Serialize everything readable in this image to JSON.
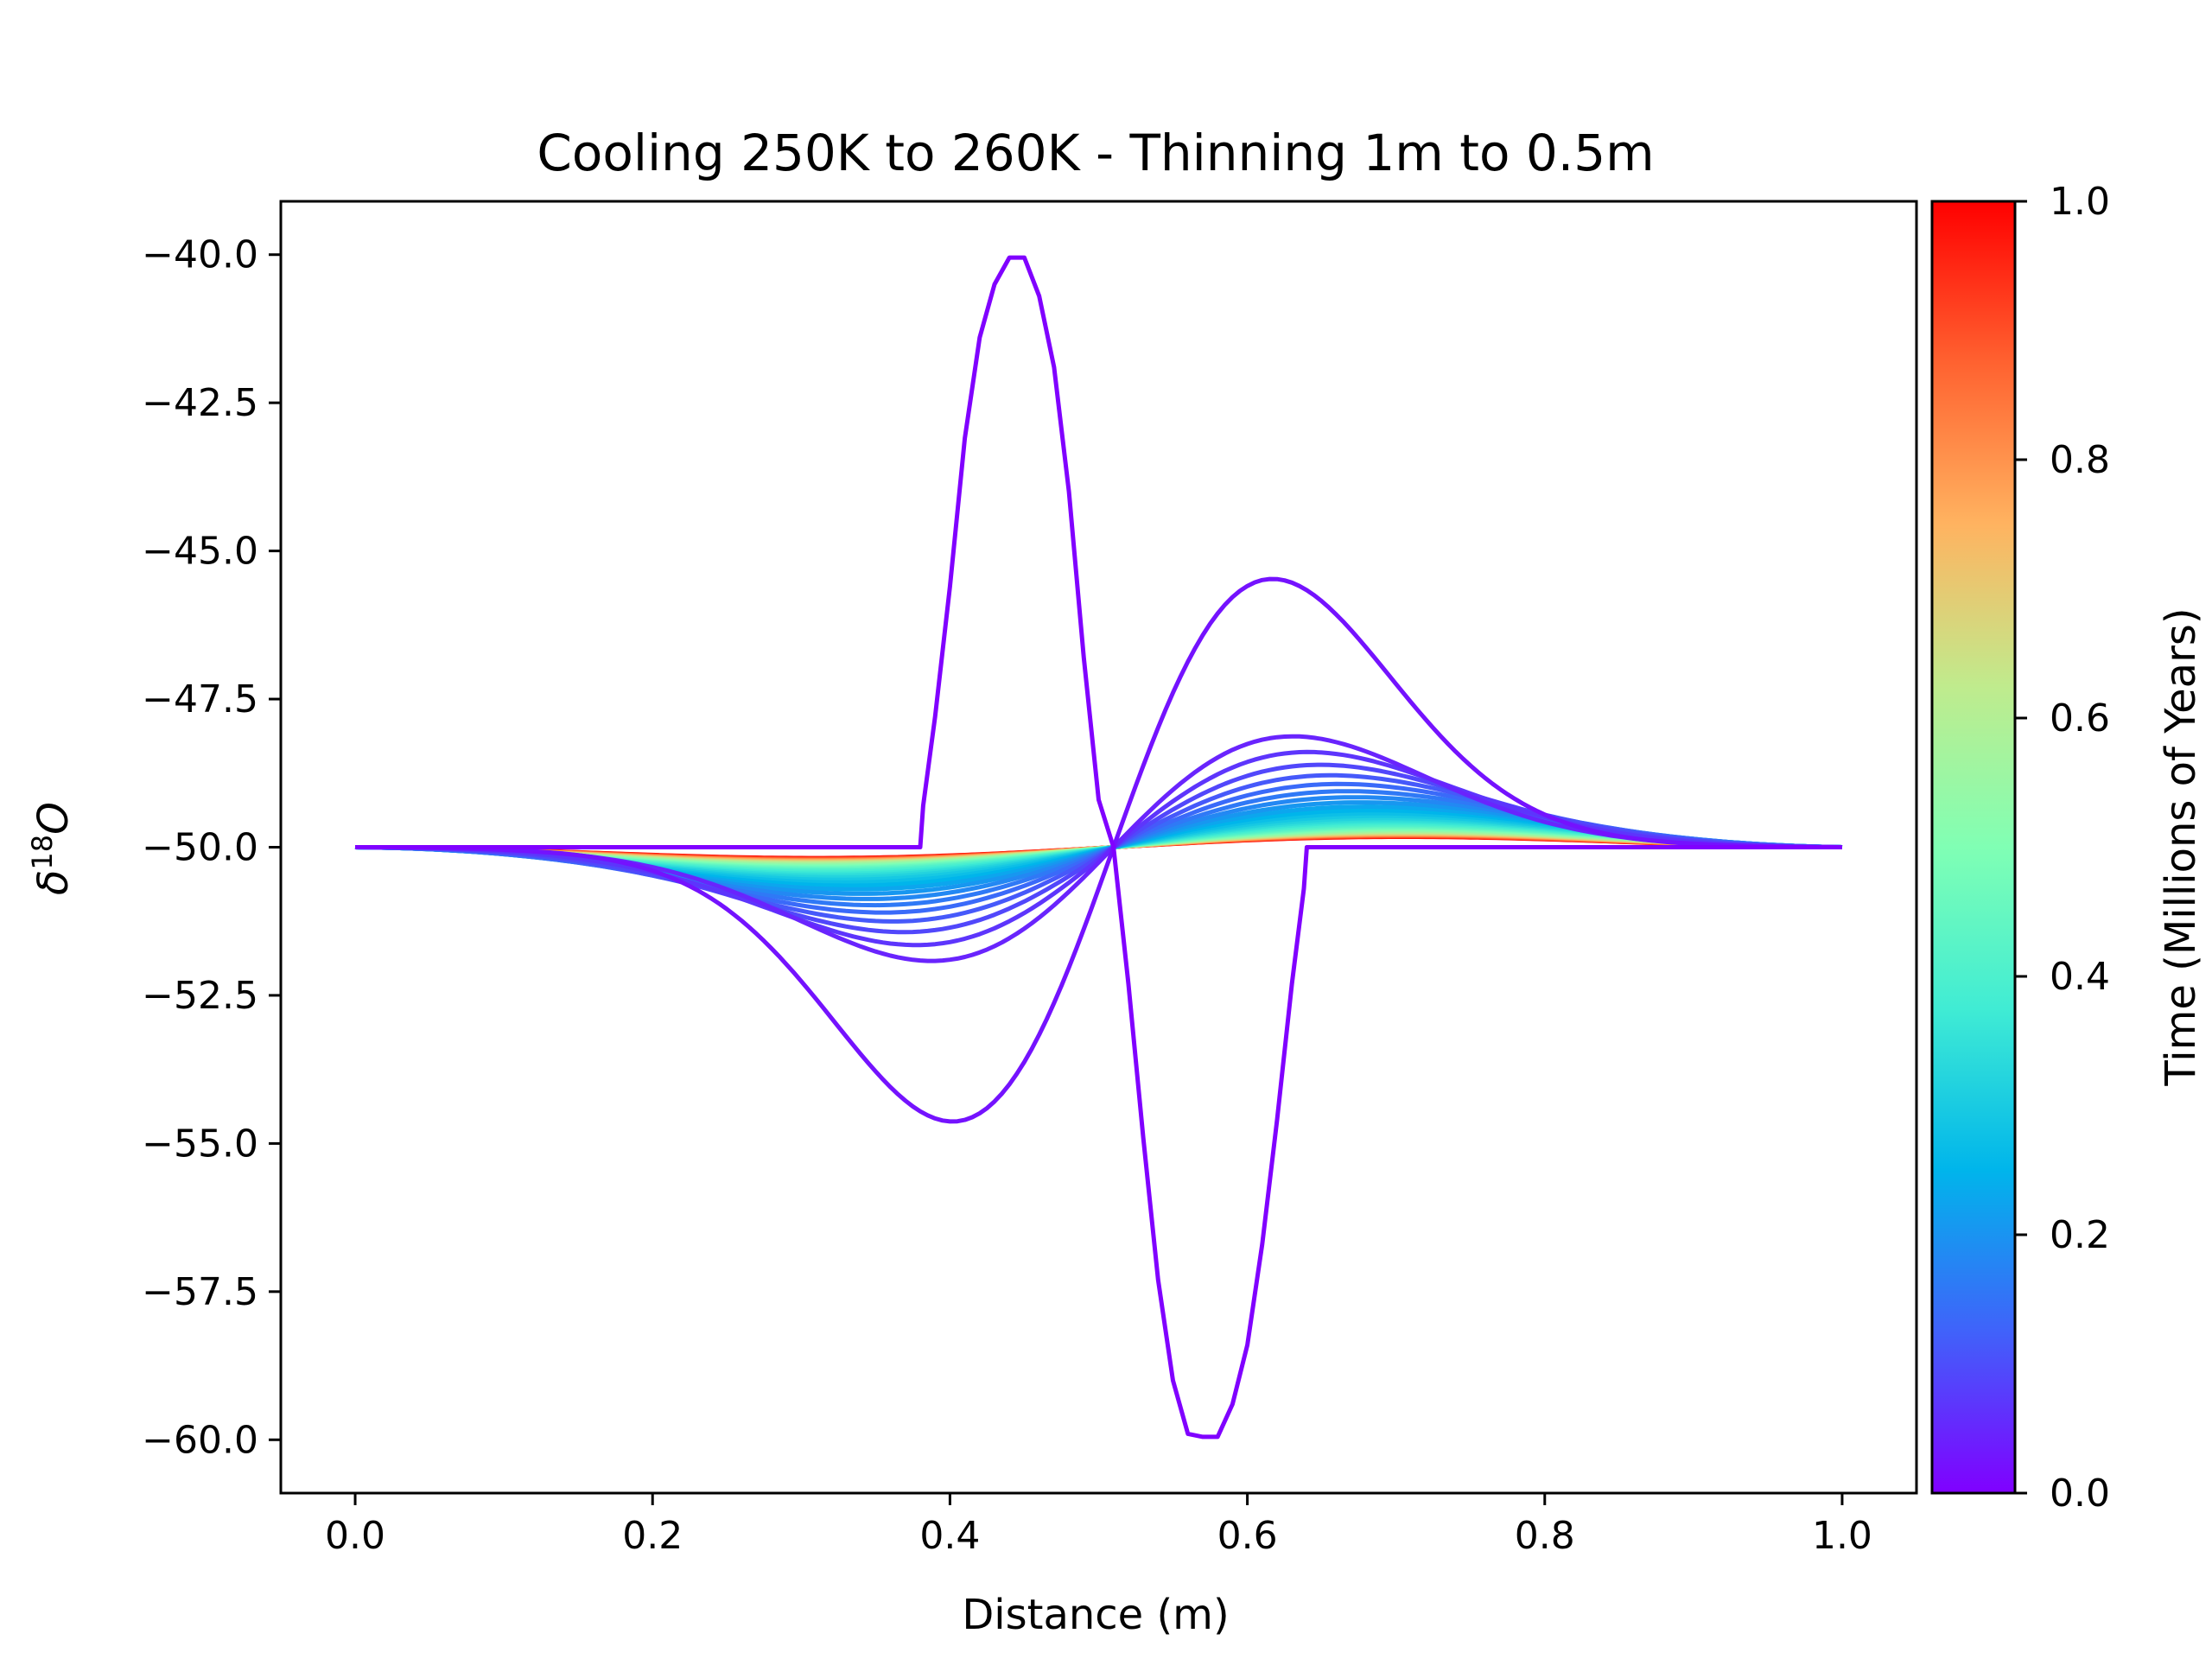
{
  "chart_data": {
    "type": "line",
    "title": "Cooling 250K to 260K - Thinning 1m to 0.5m",
    "xlabel": "Distance (m)",
    "ylabel": "δ18O",
    "ylabel_base": "δ",
    "ylabel_sup": "18",
    "ylabel_tail": "O",
    "xlim": [
      -0.05,
      1.05
    ],
    "ylim": [
      -60.9,
      -39.1
    ],
    "x_ticks": [
      0.0,
      0.2,
      0.4,
      0.6,
      0.8,
      1.0
    ],
    "x_tick_labels": [
      "0.0",
      "0.2",
      "0.4",
      "0.6",
      "0.8",
      "1.0"
    ],
    "y_ticks": [
      -40.0,
      -42.5,
      -45.0,
      -47.5,
      -50.0,
      -52.5,
      -55.0,
      -57.5,
      -60.0
    ],
    "y_tick_labels": [
      "−40.0",
      "−42.5",
      "−45.0",
      "−47.5",
      "−50.0",
      "−52.5",
      "−55.0",
      "−57.5",
      "−60.0"
    ],
    "grid": false,
    "legend": "none",
    "colorbar": {
      "label": "Time (Millions of Years)",
      "range": [
        0.0,
        1.0
      ],
      "ticks": [
        0.0,
        0.2,
        0.4,
        0.6,
        0.8,
        1.0
      ],
      "tick_labels": [
        "0.0",
        "0.2",
        "0.4",
        "0.6",
        "0.8",
        "1.0"
      ],
      "colormap": [
        "#8000ff",
        "#4062fa",
        "#00b5eb",
        "#40ecd4",
        "#80ffb4",
        "#c0eb8d",
        "#ffb360",
        "#ff6230",
        "#ff0000"
      ]
    },
    "initial_profile": {
      "time": 0.0,
      "x": [
        0.0,
        0.38,
        0.382,
        0.39,
        0.4,
        0.41,
        0.42,
        0.43,
        0.44,
        0.45,
        0.46,
        0.47,
        0.48,
        0.49,
        0.5,
        0.51,
        0.52,
        0.53,
        0.54,
        0.55,
        0.56,
        0.57,
        0.58,
        0.59,
        0.6,
        0.61,
        0.62,
        0.63,
        0.638,
        0.64,
        1.0
      ],
      "y": [
        -50.0,
        -50.0,
        -49.3,
        -47.8,
        -45.6,
        -43.1,
        -41.4,
        -40.5,
        -40.05,
        -40.05,
        -40.7,
        -41.9,
        -44.0,
        -46.8,
        -49.2,
        -50.0,
        -52.3,
        -54.9,
        -57.3,
        -59.0,
        -59.9,
        -59.95,
        -59.95,
        -59.4,
        -58.4,
        -56.7,
        -54.6,
        -52.3,
        -50.7,
        -50.0,
        -50.0
      ]
    },
    "series_model": {
      "count": 45,
      "time_range": [
        0.0,
        1.0
      ],
      "note": "Diffusing dipole profiles decaying toward a smooth anti-symmetric sine shape about x=0.51"
    }
  }
}
